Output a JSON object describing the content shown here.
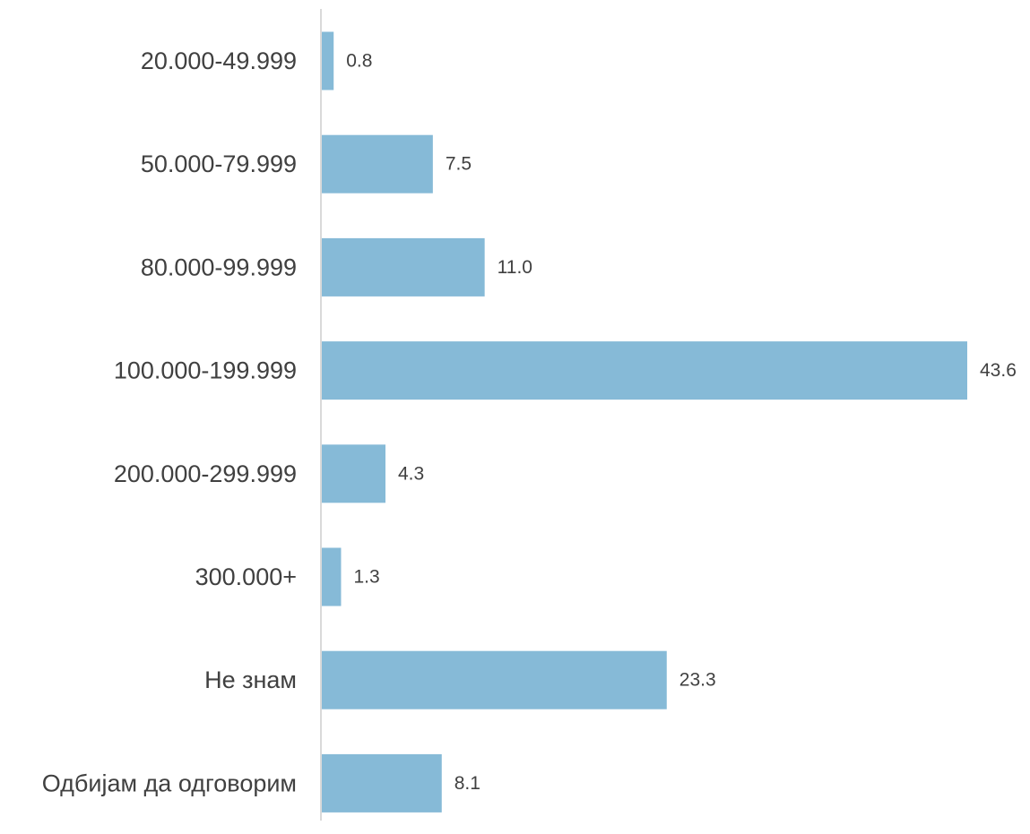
{
  "chart_data": {
    "type": "bar",
    "orientation": "horizontal",
    "title": "",
    "xlabel": "",
    "ylabel": "",
    "categories": [
      "20.000-49.999",
      "50.000-79.999",
      "80.000-99.999",
      "100.000-199.999",
      "200.000-299.999",
      "300.000+",
      "Не знам",
      "Одбијам да одговорим"
    ],
    "values": [
      0.8,
      7.5,
      11.0,
      43.6,
      4.3,
      1.3,
      23.3,
      8.1
    ],
    "value_labels": [
      "0.8",
      "7.5",
      "11.0",
      "43.6",
      "4.3",
      "1.3",
      "23.3",
      "8.1"
    ],
    "xlim": [
      0,
      43.6
    ],
    "grid": false,
    "legend": "none",
    "colors": {
      "bar": "#86bad7",
      "axis": "#d9d9d9",
      "text": "#404040"
    }
  }
}
